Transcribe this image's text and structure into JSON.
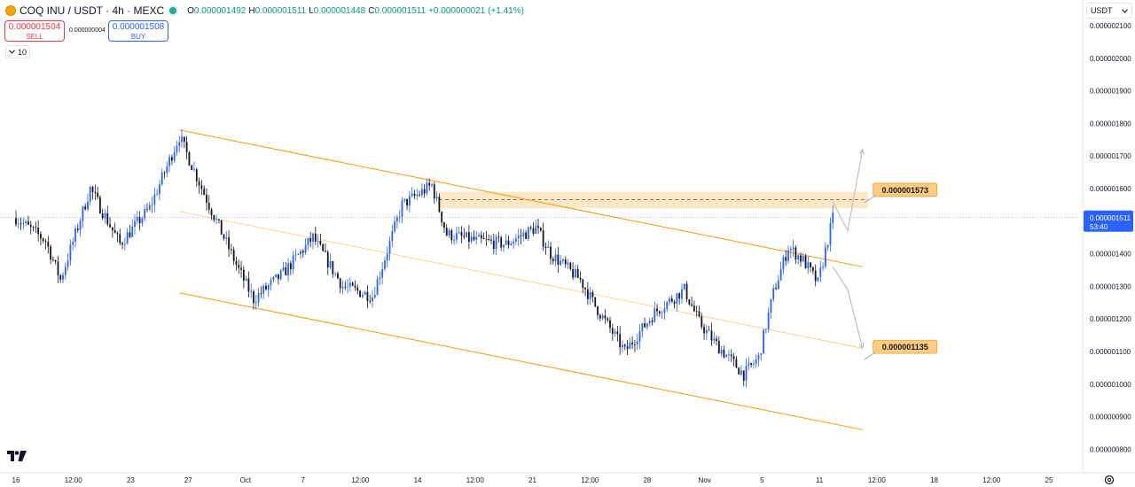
{
  "header": {
    "symbol": "COQ INU / USDT · 4h · MEXC",
    "logo_icon": "coq-coin-icon",
    "status_icon": "market-open-dot-icon",
    "open_label": "O",
    "open_value": "0.000001492",
    "high_label": "H",
    "high_value": "0.000001511",
    "low_label": "L",
    "low_value": "0.000001448",
    "close_label": "C",
    "close_value": "0.000001511",
    "change": "+0.000000021 (+1.41%)",
    "up_color": "#089981",
    "down_color": "#f23645"
  },
  "trade": {
    "sell_price": "0.000001504",
    "sell_label": "SELL",
    "spread": "0.000000004",
    "buy_price": "0.000001508",
    "buy_label": "BUY"
  },
  "indicator_toggle": {
    "label": "10",
    "icon": "chevron-down-icon"
  },
  "currency_select": {
    "value": "USDT",
    "icon": "chevron-down-icon"
  },
  "settings_icon": "gear-icon",
  "chart_data": {
    "type": "candlestick",
    "title": "COQ INU / USDT · 4h · MEXC",
    "y_axis_position": "right",
    "ylim": [
      7.7e-07,
      2.135e-06
    ],
    "y_ticks": [
      {
        "value": 8e-07,
        "label": "0.000000800"
      },
      {
        "value": 9e-07,
        "label": "0.000000900"
      },
      {
        "value": 1e-06,
        "label": "0.000001000"
      },
      {
        "value": 1.1e-06,
        "label": "0.000001100"
      },
      {
        "value": 1.2e-06,
        "label": "0.000001200"
      },
      {
        "value": 1.3e-06,
        "label": "0.000001300"
      },
      {
        "value": 1.4e-06,
        "label": "0.000001400"
      },
      {
        "value": 1.5e-06,
        "label": "0.000001500"
      },
      {
        "value": 1.6e-06,
        "label": "0.000001600"
      },
      {
        "value": 1.7e-06,
        "label": "0.000001700"
      },
      {
        "value": 1.8e-06,
        "label": "0.000001800"
      },
      {
        "value": 1.9e-06,
        "label": "0.000001900"
      },
      {
        "value": 2e-06,
        "label": "0.000002000"
      },
      {
        "value": 2.1e-06,
        "label": "0.000002100"
      }
    ],
    "x_ticks": [
      "16",
      "12:00",
      "23",
      "27",
      "Oct",
      "7",
      "12:00",
      "14",
      "12:00",
      "21",
      "12:00",
      "28",
      "Nov",
      "5",
      "11",
      "12:00",
      "18",
      "12:00",
      "25"
    ],
    "last_price": {
      "value": 1.511e-06,
      "label": "0.000001511",
      "countdown": "53:40",
      "color": "#2962ff"
    },
    "anchors": [
      {
        "date": "Sep 16",
        "price": 1.51e-06
      },
      {
        "date": "Sep 18",
        "price": 1.44e-06
      },
      {
        "date": "Sep 19",
        "price": 1.32e-06
      },
      {
        "date": "Sep 21",
        "price": 1.6e-06
      },
      {
        "date": "Sep 23",
        "price": 1.43e-06
      },
      {
        "date": "Sep 25",
        "price": 1.54e-06
      },
      {
        "date": "Sep 27",
        "price": 1.76e-06
      },
      {
        "date": "Sep 29",
        "price": 1.55e-06
      },
      {
        "date": "Oct 1",
        "price": 1.35e-06
      },
      {
        "date": "Oct 2",
        "price": 1.26e-06
      },
      {
        "date": "Oct 4",
        "price": 1.34e-06
      },
      {
        "date": "Oct 6",
        "price": 1.45e-06
      },
      {
        "date": "Oct 8",
        "price": 1.3e-06
      },
      {
        "date": "Oct 10",
        "price": 1.27e-06
      },
      {
        "date": "Oct 12",
        "price": 1.55e-06
      },
      {
        "date": "Oct 14",
        "price": 1.61e-06
      },
      {
        "date": "Oct 15",
        "price": 1.46e-06
      },
      {
        "date": "Oct 17",
        "price": 1.44e-06
      },
      {
        "date": "Oct 19",
        "price": 1.43e-06
      },
      {
        "date": "Oct 21",
        "price": 1.48e-06
      },
      {
        "date": "Oct 22",
        "price": 1.4e-06
      },
      {
        "date": "Oct 24",
        "price": 1.32e-06
      },
      {
        "date": "Oct 25",
        "price": 1.24e-06
      },
      {
        "date": "Oct 27",
        "price": 1.1e-06
      },
      {
        "date": "Oct 29",
        "price": 1.22e-06
      },
      {
        "date": "Oct 31",
        "price": 1.29e-06
      },
      {
        "date": "Nov 1",
        "price": 1.19e-06
      },
      {
        "date": "Nov 2",
        "price": 1.13e-06
      },
      {
        "date": "Nov 4",
        "price": 1.03e-06
      },
      {
        "date": "Nov 5",
        "price": 1.08e-06
      },
      {
        "date": "Nov 6",
        "price": 1.28e-06
      },
      {
        "date": "Nov 7",
        "price": 1.42e-06
      },
      {
        "date": "Nov 8",
        "price": 1.38e-06
      },
      {
        "date": "Nov 9",
        "price": 1.31e-06
      },
      {
        "date": "Nov 10",
        "price": 1.51e-06
      }
    ],
    "channel_upper": {
      "from": {
        "date": "Sep 27",
        "price": 1.78e-06
      },
      "to": {
        "date": "Nov 12",
        "price": 1.36e-06
      }
    },
    "channel_mid": {
      "from": {
        "date": "Sep 27",
        "price": 1.53e-06
      },
      "to": {
        "date": "Nov 12",
        "price": 1.11e-06
      }
    },
    "channel_lower": {
      "from": {
        "date": "Sep 27",
        "price": 1.28e-06
      },
      "to": {
        "date": "Nov 12",
        "price": 8.6e-07
      }
    },
    "resistance_zone": {
      "from_date": "Oct 14",
      "to_date": "Nov 12",
      "low": 1.54e-06,
      "high": 1.59e-06,
      "mid": 1.566e-06
    },
    "annotations": [
      {
        "label": "0.000001573",
        "price": 1.573e-06
      },
      {
        "label": "0.000001135",
        "price": 1.135e-06
      }
    ],
    "projections": [
      {
        "name": "bullish",
        "points": [
          {
            "date": "Nov 10",
            "price": 1.56e-06
          },
          {
            "date": "Nov 11",
            "price": 1.47e-06
          },
          {
            "date": "Nov 12",
            "price": 1.72e-06
          }
        ]
      },
      {
        "name": "bearish",
        "points": [
          {
            "date": "Nov 10",
            "price": 1.36e-06
          },
          {
            "date": "Nov 11",
            "price": 1.29e-06
          },
          {
            "date": "Nov 12",
            "price": 1.11e-06
          }
        ]
      }
    ],
    "colors": {
      "channel": "#ff9800",
      "zone": "#ffe0b2",
      "label_bg": "#ffcc80",
      "projection": "#b2b5be"
    }
  }
}
